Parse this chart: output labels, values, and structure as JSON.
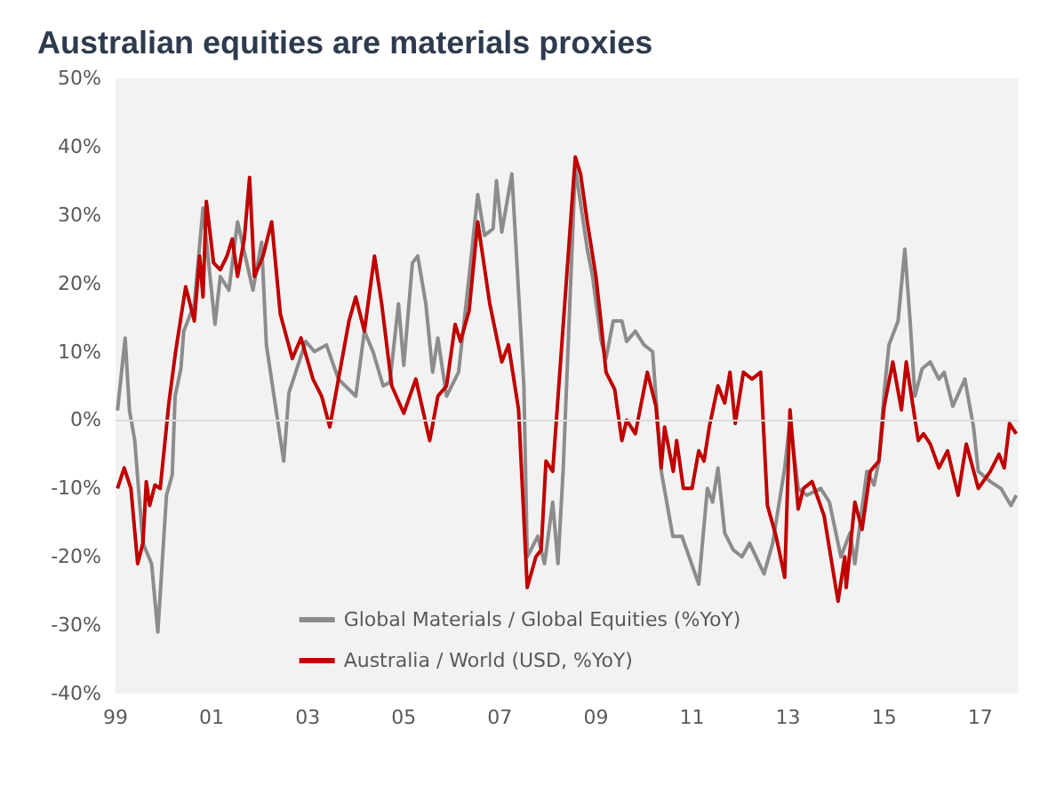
{
  "chart_data": {
    "type": "line",
    "title": "Australian equities are materials proxies",
    "x": [
      1999.04,
      1999.2,
      1999.29,
      1999.4,
      1999.5,
      1999.57,
      1999.75,
      1999.88,
      2000.06,
      2000.18,
      2000.24,
      2000.36,
      2000.42,
      2000.64,
      2000.82,
      2001.07,
      2001.18,
      2001.36,
      2001.54,
      2001.86,
      2002.04,
      2002.14,
      2002.5,
      2002.61,
      2002.75,
      2002.96,
      2003.14,
      2003.39,
      2003.64,
      2004,
      2004.18,
      2004.36,
      2004.57,
      2004.71,
      2004.89,
      2005,
      2005.18,
      2005.29,
      2005.46,
      2005.6,
      2005.71,
      2005.89,
      2006.14,
      2006.36,
      2006.54,
      2006.68,
      2006.86,
      2006.93,
      2007.04,
      2007.25,
      2007.5,
      2007.57,
      2007.79,
      2007.93,
      2008.1,
      2008.21,
      2008.32,
      2008.57,
      2008.82,
      2008.93,
      2009.11,
      2009.21,
      2009.36,
      2009.54,
      2009.64,
      2009.82,
      2010,
      2010.18,
      2010.36,
      2010.6,
      2010.79,
      2011.14,
      2011.32,
      2011.43,
      2011.54,
      2011.68,
      2011.86,
      2012.04,
      2012.2,
      2012.5,
      2012.68,
      2012.93,
      2013.04,
      2013.21,
      2013.39,
      2013.68,
      2013.86,
      2014.1,
      2014.29,
      2014.39,
      2014.64,
      2014.79,
      2014.89,
      2015,
      2015.1,
      2015.29,
      2015.43,
      2015.54,
      2015.64,
      2015.79,
      2015.96,
      2016.14,
      2016.25,
      2016.43,
      2016.68,
      2016.86,
      2016.96,
      2017.21,
      2017.43,
      2017.64,
      2017.75
    ],
    "series": [
      {
        "name": "Global Materials / Global Equities (%YoY)",
        "color": "#8c8c8c",
        "values": [
          1.4,
          12,
          1.4,
          -3,
          -12,
          -18,
          -21,
          -31,
          -11,
          -8,
          3.5,
          7.5,
          13,
          17,
          31,
          14,
          21,
          19,
          29,
          19,
          26,
          11,
          -6,
          4,
          7,
          11.5,
          10,
          11,
          6,
          3.5,
          13,
          10,
          5,
          5.5,
          17,
          8,
          23,
          24,
          17,
          7,
          12,
          3.5,
          7,
          21,
          33,
          27,
          28,
          35,
          27.5,
          36,
          5,
          -20,
          -17,
          -21,
          -12,
          -21,
          -7,
          37,
          25,
          21,
          11.5,
          9,
          14.5,
          14.5,
          11.5,
          13,
          11,
          10,
          -7.5,
          -17,
          -17,
          -24,
          -10,
          -12,
          -7,
          -16.5,
          -19,
          -20,
          -18,
          -22.5,
          -18,
          -7,
          0,
          -10,
          -11,
          -10,
          -12,
          -20,
          -16.5,
          -21,
          -7.5,
          -9.5,
          -6,
          4,
          11,
          14.5,
          25,
          14.5,
          3.5,
          7.5,
          8.5,
          6,
          7,
          2,
          6,
          -1,
          -7.5,
          -9,
          -10,
          -12.5,
          -11
        ]
      },
      {
        "name": "Australia / World (USD, %YoY)",
        "color": "#c00000",
        "x": [
          1999.04,
          1999.18,
          1999.32,
          1999.46,
          1999.57,
          1999.64,
          1999.71,
          1999.82,
          1999.93,
          2000.11,
          2000.25,
          2000.46,
          2000.64,
          2000.75,
          2000.82,
          2000.89,
          2001.04,
          2001.18,
          2001.32,
          2001.43,
          2001.54,
          2001.68,
          2001.79,
          2001.89,
          2002.07,
          2002.25,
          2002.43,
          2002.68,
          2002.86,
          2003.11,
          2003.29,
          2003.46,
          2003.64,
          2003.86,
          2004,
          2004.18,
          2004.39,
          2004.54,
          2004.75,
          2005,
          2005.25,
          2005.54,
          2005.71,
          2005.89,
          2006.07,
          2006.18,
          2006.36,
          2006.54,
          2006.79,
          2007.04,
          2007.18,
          2007.39,
          2007.57,
          2007.75,
          2007.86,
          2007.96,
          2008.1,
          2008.57,
          2008.68,
          2008.82,
          2009,
          2009.11,
          2009.21,
          2009.39,
          2009.54,
          2009.64,
          2009.82,
          2010.07,
          2010.25,
          2010.36,
          2010.43,
          2010.61,
          2010.68,
          2010.82,
          2011,
          2011.14,
          2011.25,
          2011.36,
          2011.54,
          2011.68,
          2011.79,
          2011.9,
          2012.07,
          2012.25,
          2012.43,
          2012.57,
          2012.75,
          2012.93,
          2013.04,
          2013.21,
          2013.32,
          2013.5,
          2013.75,
          2014.04,
          2014.18,
          2014.21,
          2014.39,
          2014.54,
          2014.71,
          2014.89,
          2015,
          2015.18,
          2015.36,
          2015.46,
          2015.71,
          2015.82,
          2015.96,
          2016.14,
          2016.32,
          2016.54,
          2016.71,
          2016.96,
          2017.21,
          2017.39,
          2017.5,
          2017.61,
          2017.75
        ],
        "values": [
          -10,
          -7,
          -10,
          -21,
          -18,
          -9,
          -12.5,
          -9.5,
          -10,
          2.5,
          10,
          19.5,
          14.5,
          24,
          18,
          32,
          23,
          22,
          24,
          26.5,
          21,
          26.5,
          35.5,
          21,
          24,
          29,
          15.5,
          9,
          12,
          6,
          3.5,
          -1,
          6,
          14.5,
          18,
          13,
          24,
          17,
          5,
          1,
          6,
          -3,
          3.5,
          5,
          14,
          11.5,
          16,
          29,
          17,
          8.5,
          11,
          1.5,
          -24.5,
          -20,
          -19,
          -6,
          -7.5,
          38.5,
          36,
          29,
          21,
          14,
          7,
          4.5,
          -3,
          0,
          -2,
          7,
          2,
          -7,
          -1,
          -7.5,
          -3,
          -10,
          -10,
          -4.5,
          -6,
          -1,
          5,
          2.5,
          7,
          -0.5,
          7,
          6,
          7,
          -12.5,
          -17,
          -23,
          1.5,
          -13,
          -10,
          -9,
          -14,
          -26.5,
          -20,
          -24.5,
          -12,
          -16,
          -7.5,
          -6,
          2,
          8.5,
          1.5,
          8.5,
          -3,
          -2,
          -3.5,
          -7,
          -4.5,
          -11,
          -3.5,
          -10,
          -7.5,
          -5,
          -7,
          -0.5,
          -2
        ]
      }
    ],
    "xlim": [
      1999,
      2017.8
    ],
    "xticks": [
      {
        "value": 1999,
        "label": "99"
      },
      {
        "value": 2001,
        "label": "01"
      },
      {
        "value": 2003,
        "label": "03"
      },
      {
        "value": 2005,
        "label": "05"
      },
      {
        "value": 2007,
        "label": "07"
      },
      {
        "value": 2009,
        "label": "09"
      },
      {
        "value": 2011,
        "label": "11"
      },
      {
        "value": 2013,
        "label": "13"
      },
      {
        "value": 2015,
        "label": "15"
      },
      {
        "value": 2017,
        "label": "17"
      }
    ],
    "ylim": [
      -40,
      50
    ],
    "yticks": [
      {
        "value": -40,
        "label": "-40%"
      },
      {
        "value": -30,
        "label": "-30%"
      },
      {
        "value": -20,
        "label": "-20%"
      },
      {
        "value": -10,
        "label": "-10%"
      },
      {
        "value": 0,
        "label": "0%"
      },
      {
        "value": 10,
        "label": "10%"
      },
      {
        "value": 20,
        "label": "20%"
      },
      {
        "value": 30,
        "label": "30%"
      },
      {
        "value": 40,
        "label": "40%"
      },
      {
        "value": 50,
        "label": "50%"
      }
    ],
    "ref_lines": [
      {
        "axis": "y",
        "value": 0,
        "color": "#dcdcdc"
      }
    ],
    "grid": false,
    "legend": "bottom",
    "marker": "none",
    "line_style": "solid"
  }
}
